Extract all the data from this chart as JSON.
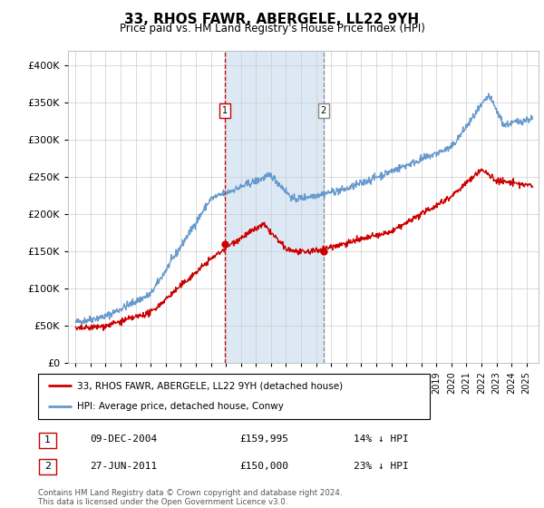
{
  "title": "33, RHOS FAWR, ABERGELE, LL22 9YH",
  "subtitle": "Price paid vs. HM Land Registry's House Price Index (HPI)",
  "ylim": [
    0,
    420000
  ],
  "xlim_start": 1994.5,
  "xlim_end": 2025.8,
  "red_line_color": "#cc0000",
  "blue_line_color": "#6699cc",
  "shade_color": "#dce9f5",
  "marker1_x": 2004.94,
  "marker1_y": 159995,
  "marker2_x": 2011.49,
  "marker2_y": 150000,
  "marker1_label": "09-DEC-2004",
  "marker1_price": "£159,995",
  "marker1_hpi": "14% ↓ HPI",
  "marker2_label": "27-JUN-2011",
  "marker2_price": "£150,000",
  "marker2_hpi": "23% ↓ HPI",
  "legend_red": "33, RHOS FAWR, ABERGELE, LL22 9YH (detached house)",
  "legend_blue": "HPI: Average price, detached house, Conwy",
  "footnote": "Contains HM Land Registry data © Crown copyright and database right 2024.\nThis data is licensed under the Open Government Licence v3.0.",
  "background_color": "#ffffff",
  "grid_color": "#cccccc"
}
